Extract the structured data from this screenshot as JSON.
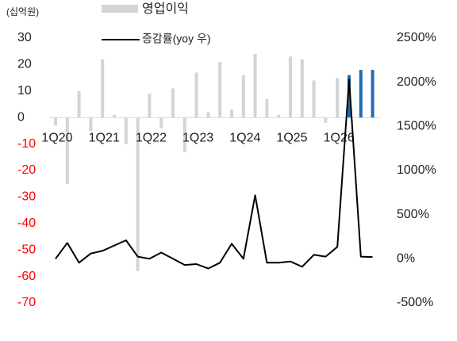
{
  "chart_data": {
    "type": "bar_line",
    "y_unit_label": "(십억원)",
    "categories": [
      "1Q20",
      null,
      null,
      null,
      "1Q21",
      null,
      null,
      null,
      "1Q22",
      null,
      null,
      null,
      "1Q23",
      null,
      null,
      null,
      "1Q24",
      null,
      null,
      null,
      "1Q25",
      null,
      null,
      null,
      "1Q26",
      null,
      null,
      null
    ],
    "series": [
      {
        "name": "영업이익",
        "color": "#d4d4d4",
        "colors": [
          "#d4d4d4",
          "#d4d4d4",
          "#d4d4d4",
          "#d4d4d4",
          "#d4d4d4",
          "#d4d4d4",
          "#d4d4d4",
          "#d4d4d4",
          "#d4d4d4",
          "#d4d4d4",
          "#d4d4d4",
          "#d4d4d4",
          "#d4d4d4",
          "#d4d4d4",
          "#d4d4d4",
          "#d4d4d4",
          "#d4d4d4",
          "#d4d4d4",
          "#d4d4d4",
          "#d4d4d4",
          "#d4d4d4",
          "#d4d4d4",
          "#d4d4d4",
          "#d4d4d4",
          "#d4d4d4",
          "#1f6db3",
          "#1f6db3",
          "#1f6db3"
        ],
        "values": [
          -3,
          -25,
          10,
          -5,
          22,
          1,
          -10,
          -58,
          9,
          -4,
          11,
          -13,
          17,
          2,
          21,
          3,
          16,
          24,
          7,
          1,
          23,
          22,
          14,
          -2,
          15,
          16,
          18,
          18
        ]
      },
      {
        "name": "증감률(yoy 우)",
        "color": "#000000",
        "axis": "y2",
        "values": [
          0,
          180,
          -45,
          60,
          90,
          150,
          210,
          25,
          0,
          70,
          0,
          -70,
          -60,
          -110,
          -45,
          170,
          0,
          720,
          -45,
          -45,
          -30,
          -90,
          45,
          25,
          135,
          2030,
          25,
          20
        ]
      }
    ],
    "ylim": [
      -70,
      30
    ],
    "yticks": [
      -70,
      -60,
      -50,
      -40,
      -30,
      -20,
      -10,
      0,
      10,
      20,
      30
    ],
    "negative_tick_color": "#ff0000",
    "y2lim": [
      -500,
      2500
    ],
    "y2ticks": [
      {
        "value": -500,
        "label": "-500%"
      },
      {
        "value": 0,
        "label": "0%"
      },
      {
        "value": 500,
        "label": "500%"
      },
      {
        "value": 1000,
        "label": "1000%"
      },
      {
        "value": 1500,
        "label": "1500%"
      },
      {
        "value": 2000,
        "label": "2000%"
      },
      {
        "value": 2500,
        "label": "2500%"
      }
    ]
  }
}
